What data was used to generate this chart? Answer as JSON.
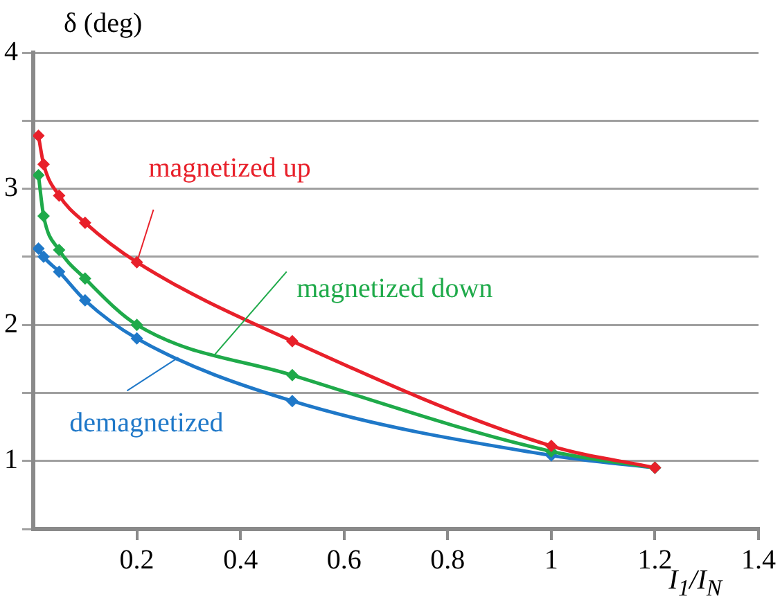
{
  "chart_data": {
    "type": "line",
    "xlabel": "I$_{1}$/I$_{N}$",
    "ylabel": "δ (deg)",
    "xlim": [
      0,
      1.4
    ],
    "xticks": [
      0.2,
      0.4,
      0.6,
      0.8,
      1,
      1.2,
      1.4
    ],
    "ylim": [
      0.5,
      4
    ],
    "yticks": [
      {
        "value": 0.5,
        "label": null
      },
      1,
      {
        "value": 1.5,
        "label": null
      },
      2,
      {
        "value": 2.5,
        "label": null
      },
      3,
      {
        "value": 3.5,
        "label": null
      },
      4
    ],
    "grid": "y",
    "marker": "diamond",
    "line_style": "solid",
    "legend": false,
    "series": [
      {
        "color": "#e8202a",
        "x": [
          0.01,
          0.02,
          0.05,
          0.1,
          0.2,
          0.5,
          1,
          1.2
        ],
        "values": [
          3.39,
          3.18,
          2.95,
          2.75,
          2.46,
          1.88,
          1.11,
          0.95
        ]
      },
      {
        "color": "#1faa4a",
        "x": [
          0.01,
          0.02,
          0.05,
          0.1,
          0.2,
          0.5,
          1,
          1.2
        ],
        "values": [
          3.1,
          2.8,
          2.55,
          2.34,
          2.0,
          1.63,
          1.07,
          0.95
        ]
      },
      {
        "color": "#1f78c8",
        "x": [
          0.01,
          0.02,
          0.05,
          0.1,
          0.2,
          0.5,
          1,
          1.2
        ],
        "values": [
          2.56,
          2.5,
          2.39,
          2.18,
          1.9,
          1.44,
          1.04,
          0.95
        ]
      }
    ],
    "annotations": [
      {
        "text": "magnetized up",
        "x": 0.2,
        "y": 2.46
      },
      {
        "text": "magnetized down",
        "x": 0.35,
        "y": 1.78
      },
      {
        "text": "demagnetized",
        "x": 0.28,
        "y": 1.76
      }
    ]
  }
}
